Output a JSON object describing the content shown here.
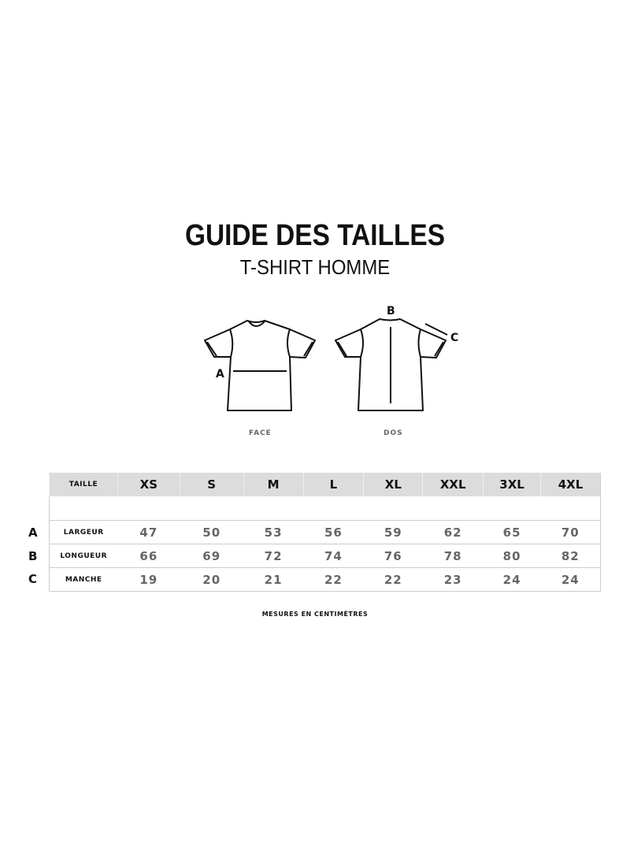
{
  "header": {
    "title": "GUIDE DES TAILLES",
    "subtitle": "T-SHIRT HOMME"
  },
  "diagram": {
    "face_label": "FACE",
    "back_label": "DOS",
    "markers": [
      "A",
      "B",
      "C"
    ]
  },
  "table": {
    "header_label": "TAILLE",
    "sizes": [
      "XS",
      "S",
      "M",
      "L",
      "XL",
      "XXL",
      "3XL",
      "4XL"
    ],
    "rows": [
      {
        "letter": "A",
        "label": "LARGEUR",
        "values": [
          "47",
          "50",
          "53",
          "56",
          "59",
          "62",
          "65",
          "70"
        ]
      },
      {
        "letter": "B",
        "label": "LONGUEUR",
        "values": [
          "66",
          "69",
          "72",
          "74",
          "76",
          "78",
          "80",
          "82"
        ]
      },
      {
        "letter": "C",
        "label": "MANCHE",
        "values": [
          "19",
          "20",
          "21",
          "22",
          "22",
          "23",
          "24",
          "24"
        ]
      }
    ]
  },
  "footer": {
    "note": "MESURES EN CENTIMÈTRES"
  }
}
